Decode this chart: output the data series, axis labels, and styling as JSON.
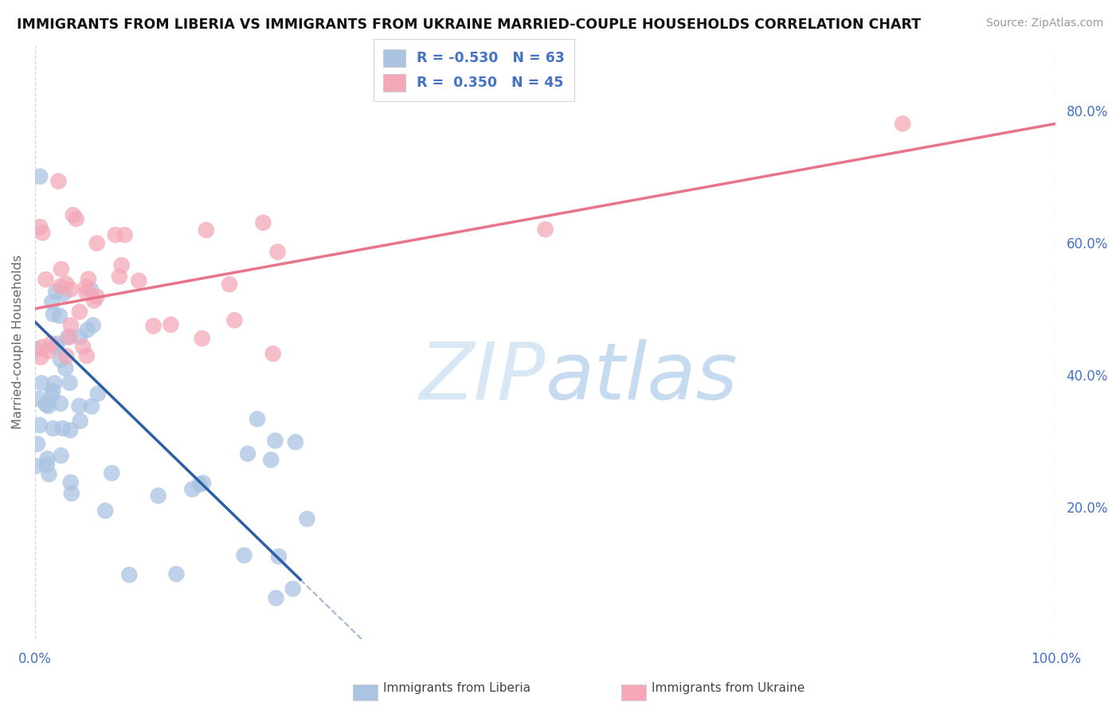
{
  "title": "IMMIGRANTS FROM LIBERIA VS IMMIGRANTS FROM UKRAINE MARRIED-COUPLE HOUSEHOLDS CORRELATION CHART",
  "source": "Source: ZipAtlas.com",
  "ylabel": "Married-couple Households",
  "ylabel_right_positions": [
    0.2,
    0.4,
    0.6,
    0.8
  ],
  "xlim": [
    0.0,
    1.0
  ],
  "ylim": [
    0.0,
    0.9
  ],
  "liberia_R": -0.53,
  "liberia_N": 63,
  "ukraine_R": 0.35,
  "ukraine_N": 45,
  "liberia_color": "#aac4e2",
  "ukraine_color": "#f4a8b8",
  "liberia_line_color": "#2b5fa8",
  "ukraine_line_color": "#e8748a",
  "legend_label_liberia": "Immigrants from Liberia",
  "legend_label_ukraine": "Immigrants from Ukraine",
  "tick_color": "#4472c4",
  "liberia_seed": 7,
  "ukraine_seed": 15
}
